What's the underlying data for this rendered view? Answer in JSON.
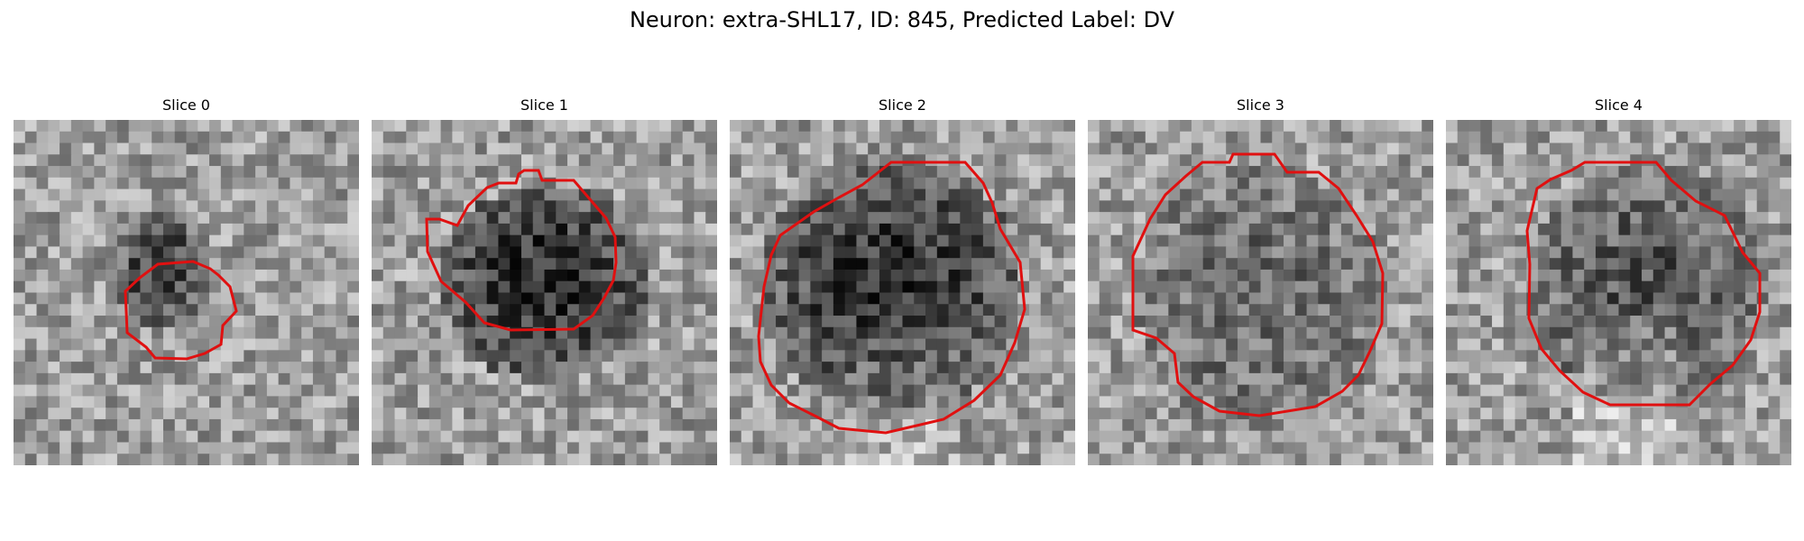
{
  "figure": {
    "title": "Neuron: extra-SHL17, ID: 845, Predicted Label: DV"
  },
  "panels": [
    {
      "title": "Slice 0"
    },
    {
      "title": "Slice 1"
    },
    {
      "title": "Slice 2"
    },
    {
      "title": "Slice 3"
    },
    {
      "title": "Slice 4"
    }
  ],
  "colors": {
    "contour": "#e01010",
    "background": "#ffffff"
  }
}
